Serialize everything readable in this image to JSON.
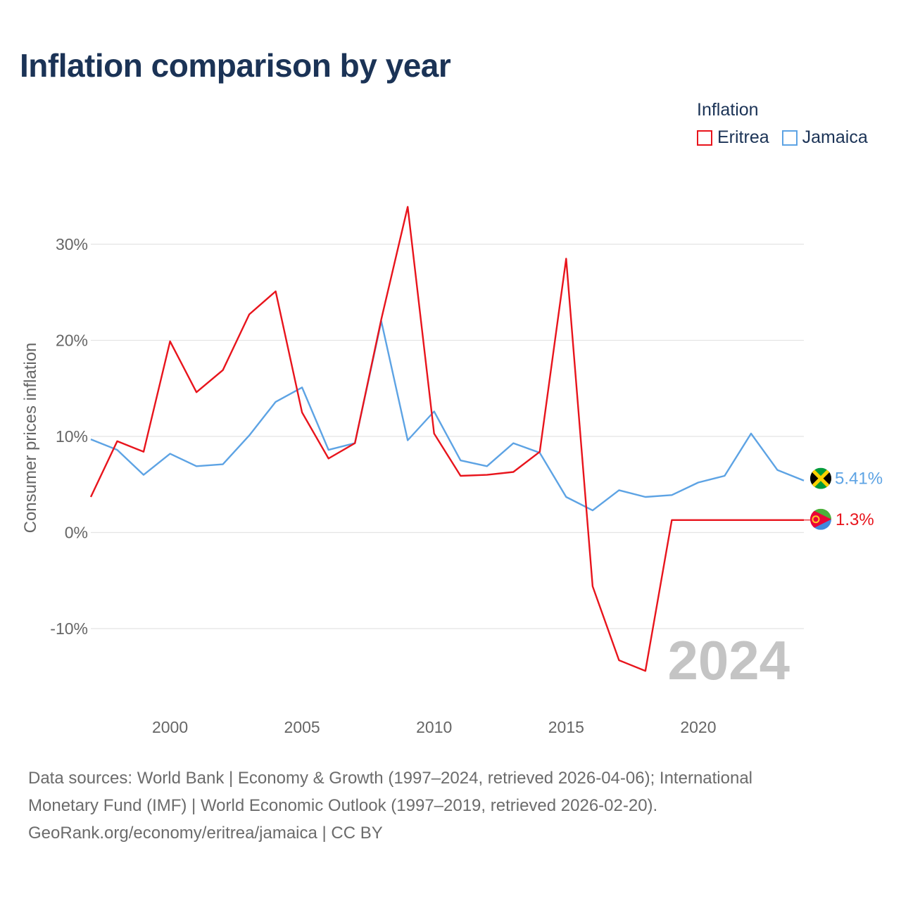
{
  "title": "Inflation comparison by year",
  "legend": {
    "title": "Inflation",
    "items": [
      {
        "label": "Eritrea",
        "color": "#e8141c"
      },
      {
        "label": "Jamaica",
        "color": "#5da3e4"
      }
    ]
  },
  "chart_data": {
    "type": "line",
    "title": "Inflation comparison by year",
    "xlabel": "",
    "ylabel": "Consumer prices inflation",
    "xlim": [
      1997,
      2024
    ],
    "ylim": [
      -17,
      36
    ],
    "x_ticks": [
      2000,
      2005,
      2010,
      2015,
      2020
    ],
    "y_ticks": [
      -10,
      0,
      10,
      20,
      30
    ],
    "y_tick_labels": [
      "-10%",
      "0%",
      "10%",
      "20%",
      "30%"
    ],
    "grid": true,
    "year_watermark": "2024",
    "x": [
      1997,
      1998,
      1999,
      2000,
      2001,
      2002,
      2003,
      2004,
      2005,
      2006,
      2007,
      2008,
      2009,
      2010,
      2011,
      2012,
      2013,
      2014,
      2015,
      2016,
      2017,
      2018,
      2019,
      2020,
      2021,
      2022,
      2023,
      2024
    ],
    "series": [
      {
        "name": "Eritrea",
        "color": "#e8141c",
        "end_label": "1.3%",
        "values": [
          3.7,
          9.5,
          8.4,
          19.9,
          14.6,
          16.9,
          22.7,
          25.1,
          12.5,
          7.7,
          9.3,
          22.2,
          33.9,
          10.3,
          5.9,
          6.0,
          6.3,
          8.4,
          28.5,
          -5.6,
          -13.3,
          -14.4,
          1.3,
          1.3,
          1.3,
          1.3,
          1.3,
          1.3
        ]
      },
      {
        "name": "Jamaica",
        "color": "#5da3e4",
        "end_label": "5.41%",
        "values": [
          9.7,
          8.6,
          6.0,
          8.2,
          6.9,
          7.1,
          10.1,
          13.6,
          15.1,
          8.6,
          9.3,
          22.0,
          9.6,
          12.6,
          7.5,
          6.9,
          9.3,
          8.3,
          3.7,
          2.3,
          4.4,
          3.7,
          3.9,
          5.2,
          5.9,
          10.3,
          6.5,
          5.41
        ]
      }
    ]
  },
  "footer": {
    "line1": "Data sources: World Bank | Economy & Growth (1997–2024, retrieved 2026-04-06); International",
    "line2": "Monetary Fund (IMF) | World Economic Outlook (1997–2019, retrieved 2026-02-20).",
    "line3": "GeoRank.org/economy/eritrea/jamaica | CC BY"
  }
}
